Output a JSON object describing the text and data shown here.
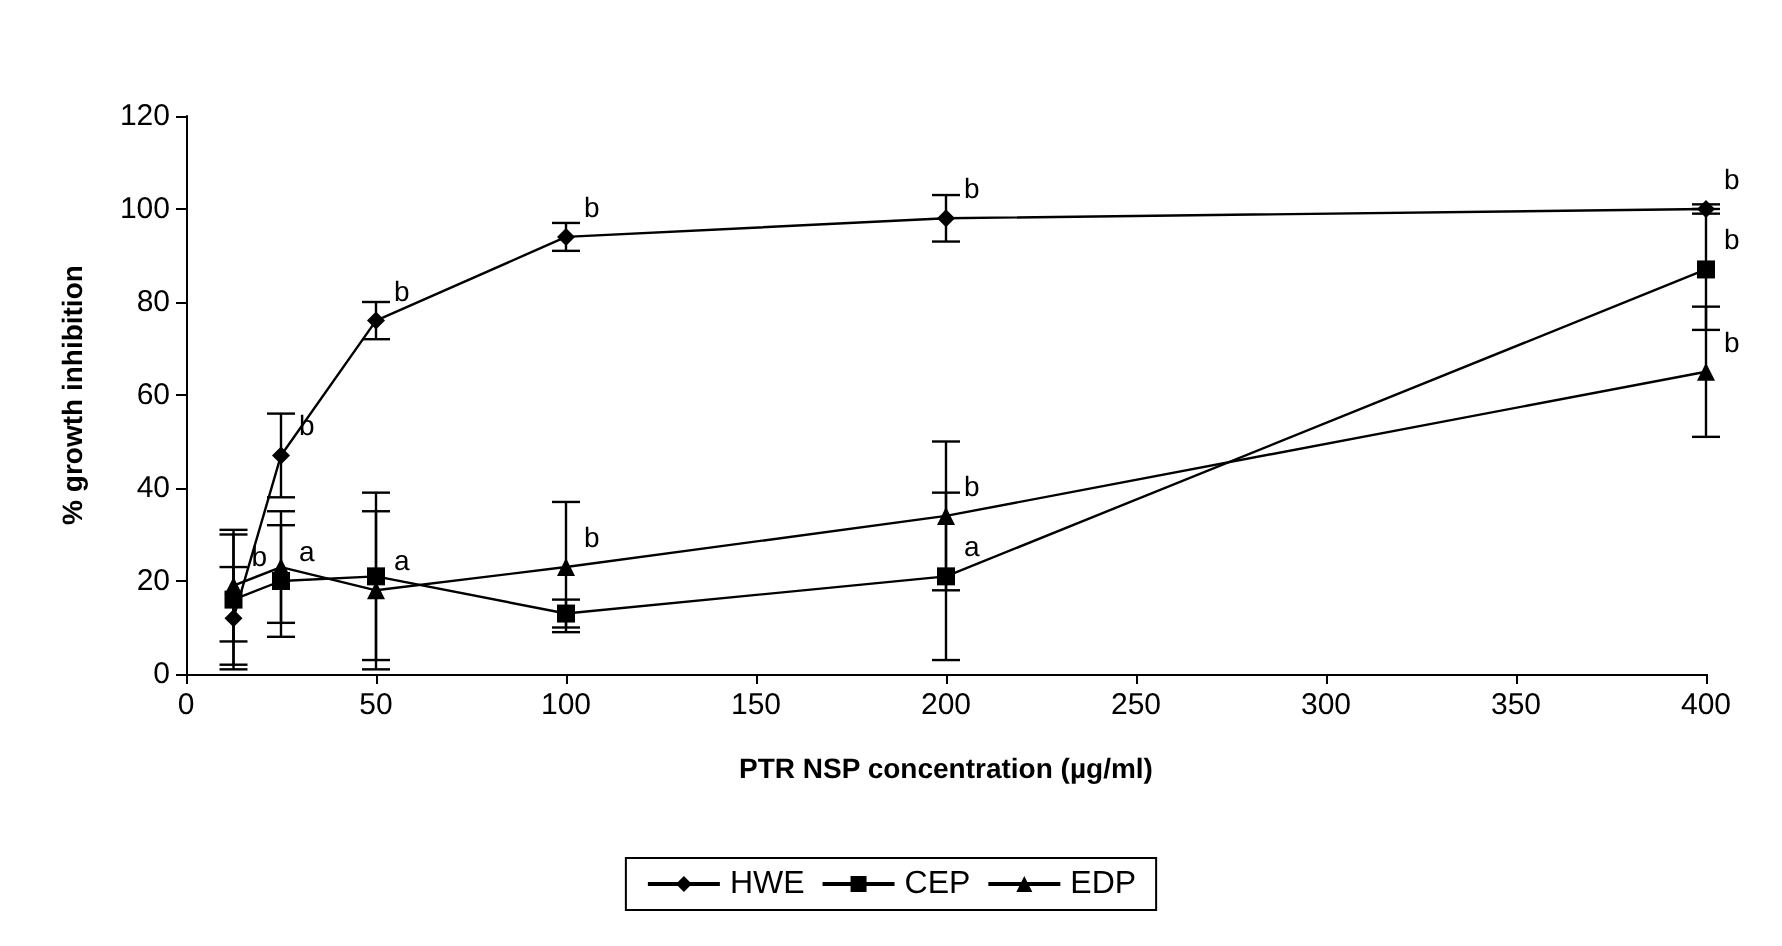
{
  "chart_data": {
    "type": "line",
    "xlabel": "PTR NSP concentration (µg/ml)",
    "ylabel": "% growth inhibition",
    "xlim": [
      0,
      400
    ],
    "xticks": [
      0,
      50,
      100,
      150,
      200,
      250,
      300,
      350,
      400
    ],
    "ylim": [
      0,
      120
    ],
    "yticks": [
      0,
      20,
      40,
      60,
      80,
      100,
      120
    ],
    "grid": false,
    "legend": "bottom",
    "x": [
      12.5,
      25,
      50,
      100,
      200,
      400
    ],
    "series": [
      {
        "name": "HWE",
        "color": "#000000",
        "marker": "diamond",
        "values": [
          12,
          47,
          76,
          94,
          98,
          100
        ],
        "errors": [
          11,
          9,
          4,
          3,
          5,
          1
        ]
      },
      {
        "name": "CEP",
        "color": "#000000",
        "marker": "square",
        "values": [
          16,
          20,
          21,
          13,
          21,
          87
        ],
        "errors": [
          14,
          12,
          18,
          3,
          18,
          13
        ]
      },
      {
        "name": "EDP",
        "color": "#000000",
        "marker": "triangle",
        "values": [
          19,
          23,
          18,
          23,
          34,
          65
        ],
        "errors": [
          12,
          12,
          17,
          14,
          16,
          14
        ]
      }
    ],
    "annotations": [
      {
        "text": "b",
        "x": 12.5,
        "y": 19
      },
      {
        "text": "b",
        "x": 25,
        "y": 47
      },
      {
        "text": "a",
        "x": 25,
        "y": 20
      },
      {
        "text": "b",
        "x": 50,
        "y": 76
      },
      {
        "text": "a",
        "x": 50,
        "y": 18
      },
      {
        "text": "b",
        "x": 100,
        "y": 94
      },
      {
        "text": "b",
        "x": 100,
        "y": 23
      },
      {
        "text": "b",
        "x": 200,
        "y": 98
      },
      {
        "text": "b",
        "x": 200,
        "y": 34
      },
      {
        "text": "a",
        "x": 200,
        "y": 21
      },
      {
        "text": "b",
        "x": 400,
        "y": 100
      },
      {
        "text": "b",
        "x": 400,
        "y": 87
      },
      {
        "text": "b",
        "x": 400,
        "y": 65
      }
    ]
  }
}
